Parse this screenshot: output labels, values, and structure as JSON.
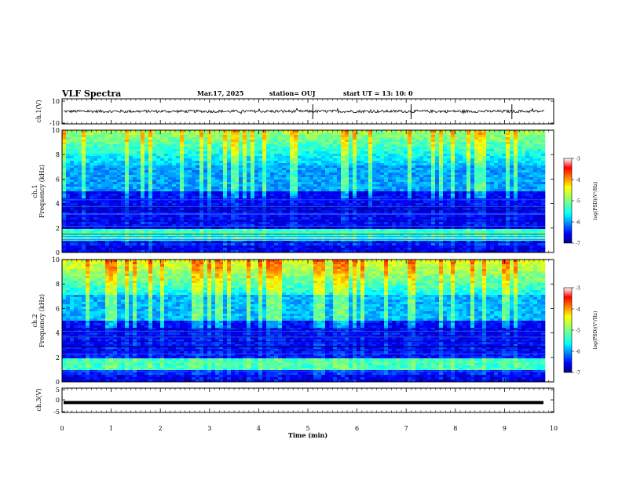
{
  "header": {
    "title": "VLF Spectra",
    "date": "Mar.17, 2025",
    "station": "station= OUJ",
    "start": "start  UT =   13: 10: 0"
  },
  "chart_data": [
    {
      "type": "line",
      "ylabel": "ch.1(V)",
      "ylim": [
        -10,
        10
      ],
      "yticks": [
        "10",
        "-10"
      ],
      "xlim": [
        0,
        10
      ],
      "series": [
        {
          "values": [
            -3,
            3
          ]
        }
      ]
    },
    {
      "type": "heatmap",
      "ylabel": "Frequency  (kHz)",
      "channel": "ch.1",
      "ylim": [
        0,
        10
      ],
      "yticks": [
        "0",
        "2",
        "4",
        "6",
        "8",
        "10"
      ],
      "colorbar": {
        "label": "log(PSD)(V²/Hz)",
        "ticks": [
          "-3",
          "-4",
          "-5",
          "-6",
          "-7"
        ],
        "range": [
          -7,
          -3
        ]
      }
    },
    {
      "type": "heatmap",
      "ylabel": "Frequency  (kHz)",
      "channel": "ch.2",
      "ylim": [
        0,
        10
      ],
      "yticks": [
        "0",
        "2",
        "4",
        "6",
        "8",
        "10"
      ],
      "colorbar": {
        "label": "log(PSD)(V²/Hz)",
        "ticks": [
          "-3",
          "-4",
          "-5",
          "-6",
          "-7"
        ],
        "range": [
          -7,
          -3
        ]
      }
    },
    {
      "type": "line",
      "ylabel": "ch.3(V)",
      "ylim": [
        -5,
        5
      ],
      "yticks": [
        "5",
        "0",
        "-5"
      ],
      "xlim": [
        0,
        10
      ],
      "series": [
        {
          "values": [
            -1.1,
            -1.1
          ]
        }
      ]
    }
  ],
  "xaxis": {
    "label": "Time  (min)",
    "ticks": [
      "0",
      "1",
      "2",
      "3",
      "4",
      "5",
      "6",
      "7",
      "8",
      "9",
      "10"
    ]
  },
  "colors": {
    "jet": [
      "#000080",
      "#0000ff",
      "#0080ff",
      "#00ffff",
      "#80ff80",
      "#ffff00",
      "#ff8000",
      "#ff0000",
      "#800000"
    ]
  }
}
